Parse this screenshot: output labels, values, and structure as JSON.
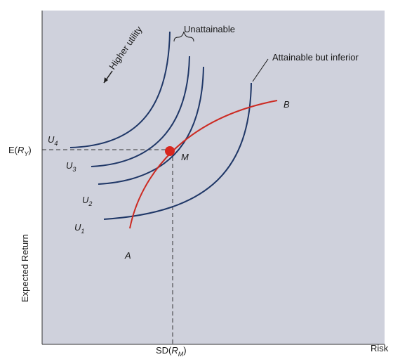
{
  "labels": {
    "unattainable": "Unattainable",
    "higher_utility": "Higher utility",
    "attainable_inferior": "Attainable but inferior",
    "point_b": "B",
    "point_m": "M",
    "point_a": "A",
    "curves": [
      "U",
      "U",
      "U",
      "U"
    ],
    "curve_subscripts": [
      "4",
      "3",
      "2",
      "1"
    ],
    "y_point": {
      "open": "E(",
      "var": "R",
      "sub": "Y",
      "close": ")"
    },
    "x_point": {
      "open": "SD(",
      "var": "R",
      "sub": "M",
      "close": ")"
    },
    "y_axis": "Expected Return",
    "x_axis": "Risk"
  }
}
